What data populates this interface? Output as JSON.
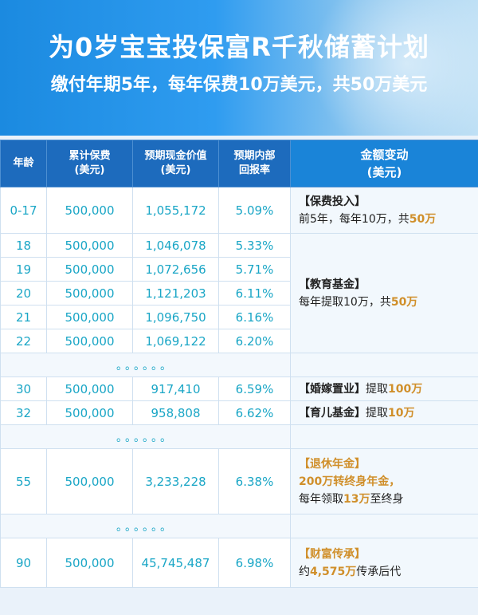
{
  "header": {
    "title": "为0岁宝宝投保富R千秋储蓄计划",
    "subtitle": "缴付年期5年，每年保费10万美元，共50万美元"
  },
  "table": {
    "columns": {
      "age": "年龄",
      "premium_l1": "累计保费",
      "premium_l2": "(美元)",
      "cash_l1": "预期现金价值",
      "cash_l2": "(美元)",
      "irr_l1": "预期内部",
      "irr_l2": "回报率",
      "change_l1": "金额变动",
      "change_l2": "(美元)"
    },
    "rows": [
      {
        "age": "0-17",
        "premium": "500,000",
        "cash": "1,055,172",
        "irr": "5.09%"
      },
      {
        "age": "18",
        "premium": "500,000",
        "cash": "1,046,078",
        "irr": "5.33%"
      },
      {
        "age": "19",
        "premium": "500,000",
        "cash": "1,072,656",
        "irr": "5.71%"
      },
      {
        "age": "20",
        "premium": "500,000",
        "cash": "1,121,203",
        "irr": "6.11%"
      },
      {
        "age": "21",
        "premium": "500,000",
        "cash": "1,096,750",
        "irr": "6.16%"
      },
      {
        "age": "22",
        "premium": "500,000",
        "cash": "1,069,122",
        "irr": "6.20%"
      },
      {
        "age": "30",
        "premium": "500,000",
        "cash": "917,410",
        "irr": "6.59%"
      },
      {
        "age": "32",
        "premium": "500,000",
        "cash": "958,808",
        "irr": "6.62%"
      },
      {
        "age": "55",
        "premium": "500,000",
        "cash": "3,233,228",
        "irr": "6.38%"
      },
      {
        "age": "90",
        "premium": "500,000",
        "cash": "45,745,487",
        "irr": "6.98%"
      }
    ],
    "ellipsis": "。。。。。。",
    "notes": {
      "premium": {
        "tag": "【保费投入】",
        "text1": "前5年，每年10万，共",
        "amt": "50万"
      },
      "education": {
        "tag": "【教育基金】",
        "text1": "每年提取10万，共",
        "amt": "50万"
      },
      "marriage": {
        "tag": "【婚嫁置业】",
        "text1": "提取",
        "amt": "100万"
      },
      "childcare": {
        "tag": "【育儿基金】",
        "text1": "提取",
        "amt": "10万"
      },
      "retire": {
        "tag": "【退休年金】",
        "amt1": "200万",
        "text1": "转终身年金，",
        "text2": "每年领取",
        "amt2": "13万",
        "text3": "至终身"
      },
      "legacy": {
        "tag": "【财富传承】",
        "text1": "约",
        "amt": "4,575万",
        "text2": "传承后代"
      }
    }
  }
}
